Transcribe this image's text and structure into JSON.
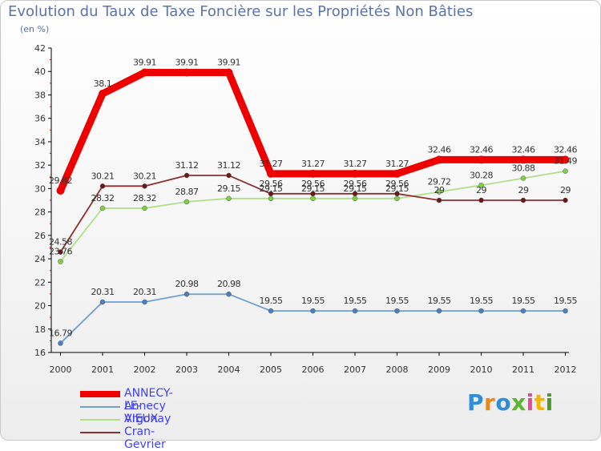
{
  "title": "Evolution du Taux de Taxe Foncière sur les Propriétés Non Bâties",
  "subtitle": "(en %)",
  "logo": {
    "text": "Proxiti",
    "colors": [
      "#2e8fd8",
      "#e8891c",
      "#2e8fd8",
      "#5cb531",
      "#e34a8f",
      "#f5b400",
      "#4c9a2a"
    ]
  },
  "chart_data": {
    "type": "line",
    "title": "Evolution du Taux de Taxe Foncière sur les Propriétés Non Bâties",
    "ylabel": "(en %)",
    "xlabel": "",
    "ylim": [
      16,
      42
    ],
    "yticks": [
      16,
      18,
      20,
      22,
      24,
      26,
      28,
      30,
      32,
      34,
      36,
      38,
      40,
      42
    ],
    "categories": [
      "2000",
      "2001",
      "2002",
      "2003",
      "2004",
      "2005",
      "2006",
      "2007",
      "2008",
      "2009",
      "2010",
      "2011",
      "2012"
    ],
    "grid": false,
    "legend_position": "bottom-left",
    "series": [
      {
        "name": "ANNECY-LE-VIEUX",
        "color": "#ee0000",
        "marker": "#ee0000",
        "values": [
          29.82,
          38.1,
          39.91,
          39.91,
          39.91,
          31.27,
          31.27,
          31.27,
          31.27,
          32.46,
          32.46,
          32.46,
          32.46
        ]
      },
      {
        "name": "Annecy",
        "color": "#6fa0d0",
        "marker": "#4a80c0",
        "values": [
          16.79,
          20.31,
          20.31,
          20.98,
          20.98,
          19.55,
          19.55,
          19.55,
          19.55,
          19.55,
          19.55,
          19.55,
          19.55
        ]
      },
      {
        "name": "Argonay",
        "color": "#aee08a",
        "marker": "#7fd040",
        "values": [
          23.76,
          28.32,
          28.32,
          28.87,
          29.15,
          29.15,
          29.15,
          29.15,
          29.15,
          29.72,
          30.28,
          30.88,
          31.49
        ]
      },
      {
        "name": "Cran-Gevrier",
        "color": "#8b3030",
        "marker": "#6b1818",
        "values": [
          24.58,
          30.21,
          30.21,
          31.12,
          31.12,
          29.56,
          29.56,
          29.56,
          29.56,
          29,
          29,
          29,
          29
        ]
      }
    ],
    "data_labels": [
      [
        "29.82",
        "38.1",
        "39.91",
        "39.91",
        "39.91",
        "31.27",
        "31.27",
        "31.27",
        "31.27",
        "32.46",
        "32.46",
        "32.46",
        "32.46"
      ],
      [
        "16.79",
        "20.31",
        "20.31",
        "20.98",
        "20.98",
        "19.55",
        "19.55",
        "19.55",
        "19.55",
        "19.55",
        "19.55",
        "19.55",
        "19.55"
      ],
      [
        "23.76",
        "28.32",
        "28.32",
        "28.87",
        "29.15",
        "29.15",
        "29.15",
        "29.15",
        "29.15",
        "29.72",
        "30.28",
        "30.88",
        "31.49"
      ],
      [
        "24.58",
        "30.21",
        "30.21",
        "31.12",
        "31.12",
        "29.56",
        "29.56",
        "29.56",
        "29.56",
        "29",
        "29",
        "29",
        "29"
      ]
    ]
  }
}
